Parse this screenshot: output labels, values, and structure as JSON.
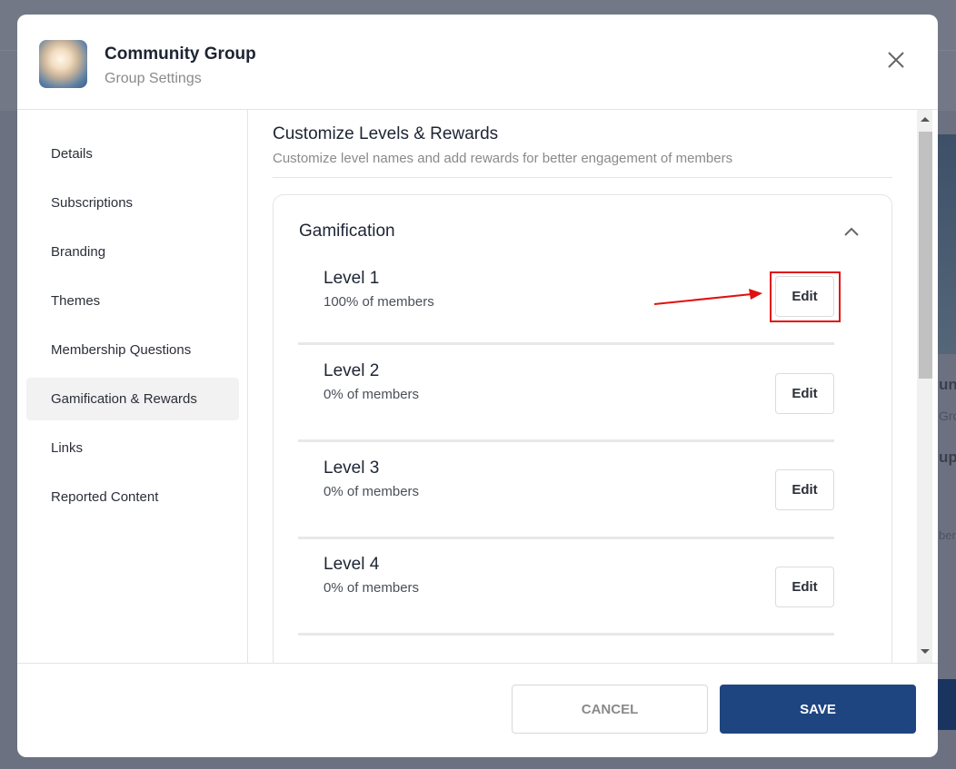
{
  "background": {
    "fragments": [
      "uni",
      "Gro",
      "up",
      "ber"
    ]
  },
  "header": {
    "title": "Community Group",
    "subtitle": "Group Settings",
    "close_icon": "close-icon"
  },
  "sidebar": {
    "items": [
      {
        "label": "Details"
      },
      {
        "label": "Subscriptions"
      },
      {
        "label": "Branding"
      },
      {
        "label": "Themes"
      },
      {
        "label": "Membership Questions"
      },
      {
        "label": "Gamification & Rewards",
        "active": true
      },
      {
        "label": "Links"
      },
      {
        "label": "Reported Content"
      }
    ]
  },
  "main": {
    "title": "Customize Levels & Rewards",
    "subtitle": "Customize level names and add rewards for better engagement of members",
    "card": {
      "title": "Gamification",
      "expanded": true,
      "levels": [
        {
          "name": "Level 1",
          "members": "100% of members",
          "edit_label": "Edit"
        },
        {
          "name": "Level 2",
          "members": "0% of members",
          "edit_label": "Edit"
        },
        {
          "name": "Level 3",
          "members": "0% of members",
          "edit_label": "Edit"
        },
        {
          "name": "Level 4",
          "members": "0% of members",
          "edit_label": "Edit"
        }
      ]
    }
  },
  "annotation": {
    "color": "#e01010"
  },
  "footer": {
    "cancel_label": "CANCEL",
    "save_label": "SAVE",
    "save_color": "#1e4580"
  }
}
